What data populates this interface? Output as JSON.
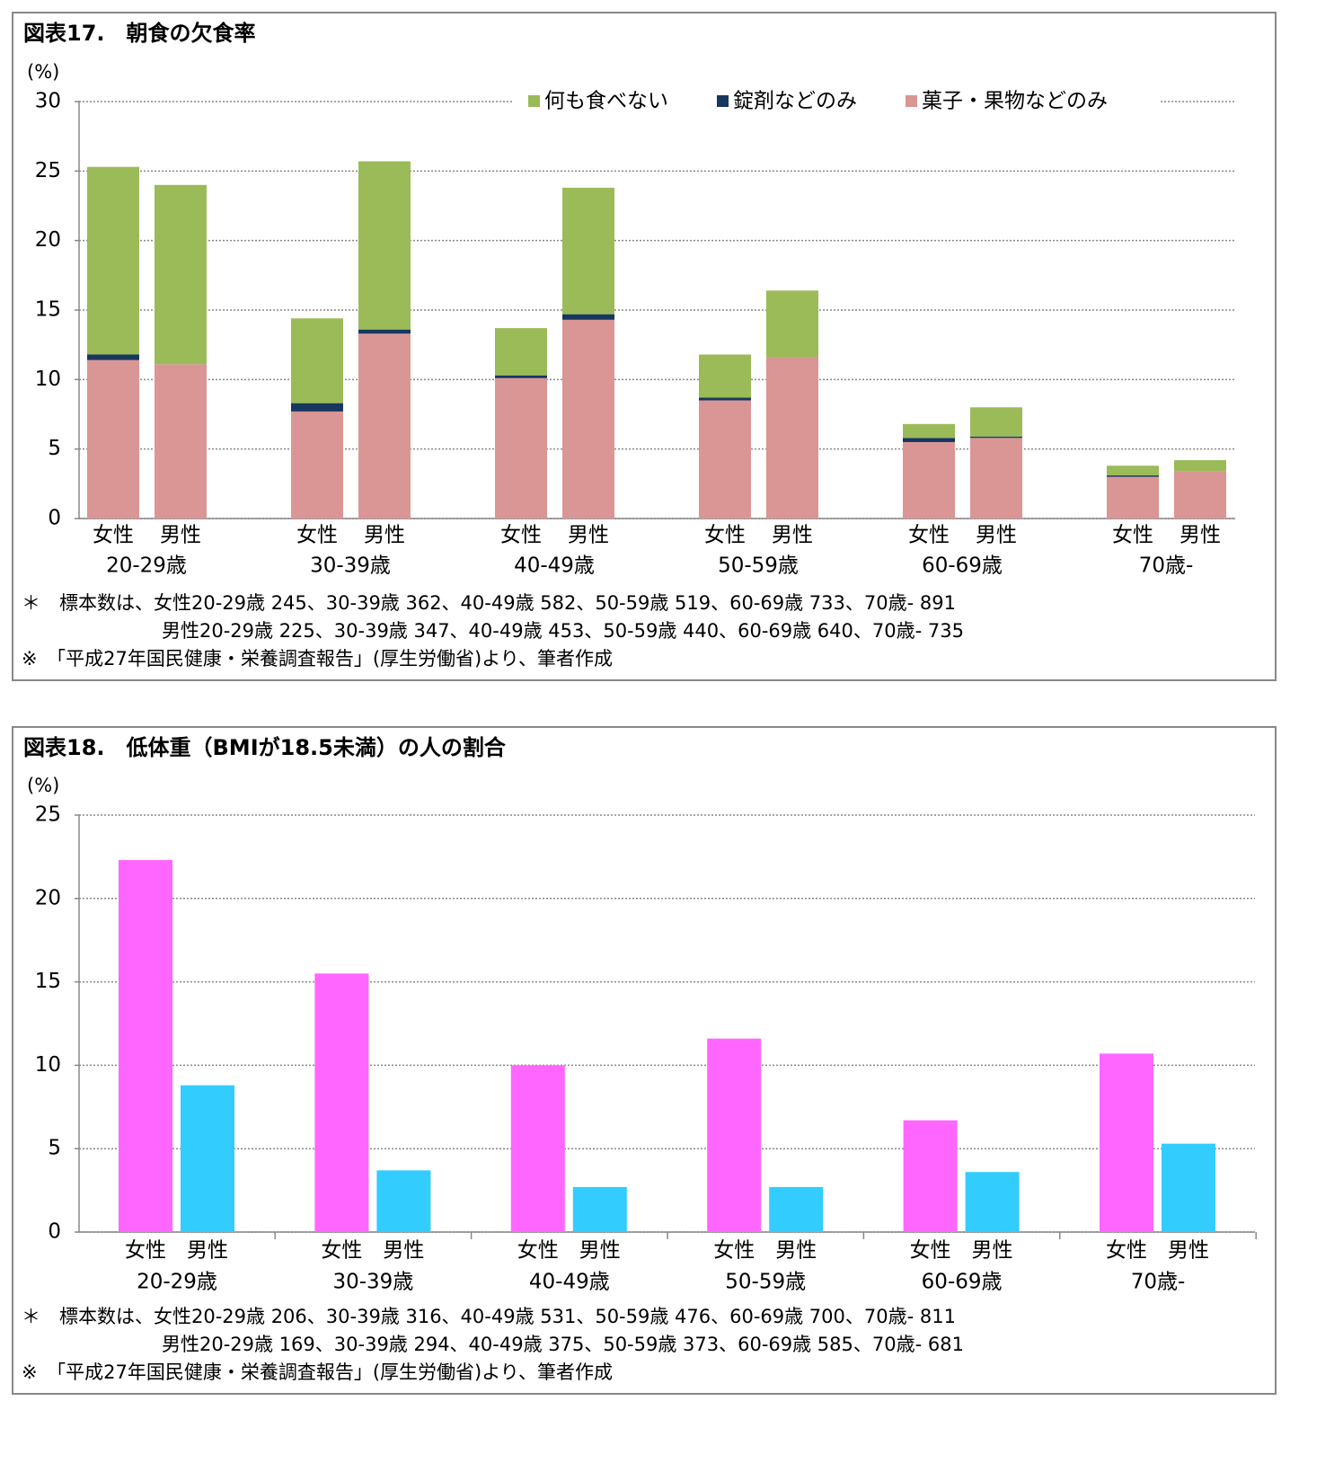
{
  "chart_data": [
    {
      "type": "stacked_bar",
      "title": "図表17.　朝食の欠食率",
      "ylabel": "(%)",
      "groups": [
        "20-29歳",
        "30-39歳",
        "40-49歳",
        "50-59歳",
        "60-69歳",
        "70歳-"
      ],
      "categories": [
        "女性",
        "男性",
        "女性",
        "男性",
        "女性",
        "男性",
        "女性",
        "男性",
        "女性",
        "男性",
        "女性",
        "男性"
      ],
      "series": [
        {
          "name": "菓子・果物などのみ",
          "color": "#d99694",
          "values": [
            11.4,
            11.1,
            7.7,
            13.3,
            10.1,
            14.3,
            8.5,
            11.6,
            5.5,
            5.8,
            3.0,
            3.4
          ]
        },
        {
          "name": "錠剤などのみ",
          "color": "#17375e",
          "values": [
            0.4,
            0,
            0.6,
            0.3,
            0.2,
            0.4,
            0.2,
            0,
            0.3,
            0.1,
            0.1,
            0
          ]
        },
        {
          "name": "何も食べない",
          "color": "#9bbb59",
          "values": [
            13.5,
            12.9,
            6.1,
            12.1,
            3.4,
            9.1,
            3.1,
            4.8,
            1.0,
            2.1,
            0.7,
            0.8
          ]
        }
      ],
      "legend_order": [
        2,
        1,
        0
      ],
      "ylim": [
        0,
        30
      ],
      "yticks": [
        0,
        5,
        10,
        15,
        20,
        25,
        30
      ],
      "grid": true,
      "notes": [
        "＊　標本数は、女性20-29歳 245、30-39歳 362、40-49歳 582、50-59歳 519、60-69歳 733、70歳- 891",
        "男性20-29歳 225、30-39歳 347、40-49歳 453、50-59歳 440、60-69歳 640、70歳- 735",
        "※　「平成27年国民健康・栄養調査報告」(厚生労働省)より、筆者作成"
      ]
    },
    {
      "type": "bar",
      "title": "図表18.　低体重（BMIが18.5未満）の人の割合",
      "ylabel": "(%)",
      "groups": [
        "20-29歳",
        "30-39歳",
        "40-49歳",
        "50-59歳",
        "60-69歳",
        "70歳-"
      ],
      "categories": [
        "女性",
        "男性",
        "女性",
        "男性",
        "女性",
        "男性",
        "女性",
        "男性",
        "女性",
        "男性",
        "女性",
        "男性"
      ],
      "values": [
        22.3,
        8.8,
        15.5,
        3.7,
        10.0,
        2.7,
        11.6,
        2.7,
        6.7,
        3.6,
        10.7,
        5.3
      ],
      "colors": [
        "#ff66ff",
        "#33ccff"
      ],
      "ylim": [
        0,
        25
      ],
      "yticks": [
        0,
        5,
        10,
        15,
        20,
        25
      ],
      "grid": true,
      "notes": [
        "＊　標本数は、女性20-29歳 206、30-39歳 316、40-49歳 531、50-59歳 476、60-69歳 700、70歳- 811",
        "男性20-29歳 169、30-39歳 294、40-49歳 375、50-59歳 373、60-69歳 585、70歳- 681",
        "※　「平成27年国民健康・栄養調査報告」(厚生労働省)より、筆者作成"
      ]
    }
  ]
}
